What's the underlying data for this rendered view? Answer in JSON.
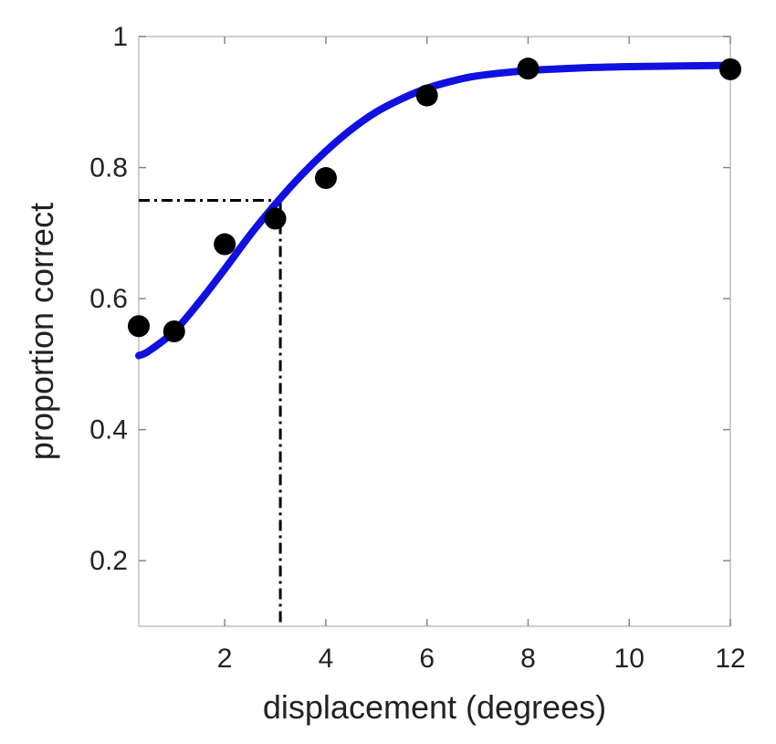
{
  "chart_data": {
    "type": "scatter",
    "title": "",
    "xlabel": "displacement (degrees)",
    "ylabel": "proportion correct",
    "xlim": [
      0.3,
      12
    ],
    "ylim": [
      0.1,
      1.0
    ],
    "x_ticks": [
      2,
      4,
      6,
      8,
      10,
      12
    ],
    "y_ticks": [
      0.2,
      0.4,
      0.6,
      0.8,
      1.0
    ],
    "x_tick_labels": [
      "2",
      "4",
      "6",
      "8",
      "10",
      "12"
    ],
    "y_tick_labels": [
      "0.2",
      "0.4",
      "0.6",
      "0.8",
      "1"
    ],
    "grid": false,
    "points": {
      "x": [
        0.3,
        1,
        2,
        3,
        4,
        6,
        8,
        12
      ],
      "y": [
        0.558,
        0.55,
        0.683,
        0.722,
        0.784,
        0.91,
        0.951,
        0.95
      ]
    },
    "fit_curve": {
      "color": "#1010e0",
      "x": [
        0.3,
        0.5,
        1,
        1.5,
        2,
        2.5,
        3,
        3.5,
        4,
        4.5,
        5,
        5.5,
        6,
        6.5,
        7,
        8,
        9,
        10,
        11,
        12
      ],
      "y": [
        0.513,
        0.52,
        0.55,
        0.595,
        0.645,
        0.697,
        0.744,
        0.787,
        0.825,
        0.858,
        0.885,
        0.905,
        0.921,
        0.932,
        0.94,
        0.948,
        0.952,
        0.954,
        0.955,
        0.956
      ]
    },
    "threshold": {
      "x": 3.1,
      "y": 0.75
    },
    "colors": {
      "points": "#000000",
      "fit": "#1010e0",
      "threshold": "#000000",
      "axes": "#444444"
    }
  }
}
